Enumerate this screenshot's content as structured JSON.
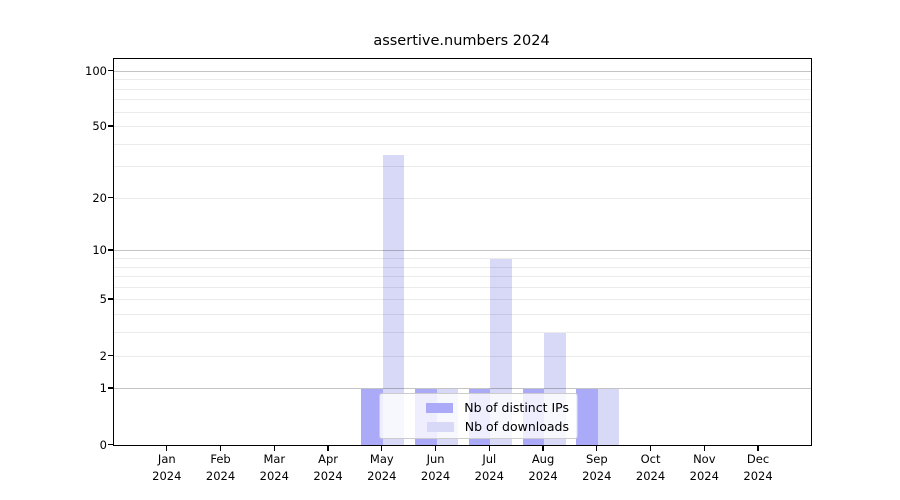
{
  "chart_data": {
    "type": "bar",
    "title": "assertive.numbers 2024",
    "year": "2024",
    "categories": [
      "Jan",
      "Feb",
      "Mar",
      "Apr",
      "May",
      "Jun",
      "Jul",
      "Aug",
      "Sep",
      "Oct",
      "Nov",
      "Dec"
    ],
    "series": [
      {
        "name": "Nb of distinct IPs",
        "color": "#aaaaf9",
        "values": [
          0,
          0,
          0,
          0,
          1,
          1,
          1,
          1,
          1,
          0,
          0,
          0
        ]
      },
      {
        "name": "Nb of downloads",
        "color": "#d8d8f7",
        "values": [
          0,
          0,
          0,
          0,
          35,
          1,
          9,
          3,
          1,
          0,
          0,
          0
        ]
      }
    ],
    "y_scale": "log10(value+1)",
    "ylim": [
      0,
      100
    ],
    "y_tick_labels": [
      0,
      1,
      2,
      5,
      10,
      20,
      50,
      100
    ],
    "y_major_gridlines": [
      1,
      10,
      100
    ],
    "y_minor_gridlines": [
      2,
      3,
      4,
      5,
      6,
      7,
      8,
      9,
      20,
      30,
      40,
      50,
      60,
      70,
      80,
      90
    ],
    "grid": true,
    "legend_position": "lower center"
  },
  "colors": {
    "bar_ips": "#aaaaf9",
    "bar_downloads": "#d8d8f7",
    "grid_major": "rgba(0,0,0,0.23)",
    "grid_minor": "rgba(0,0,0,0.08)",
    "axis": "#000000",
    "background": "#ffffff",
    "legend_border": "#cccccc"
  }
}
